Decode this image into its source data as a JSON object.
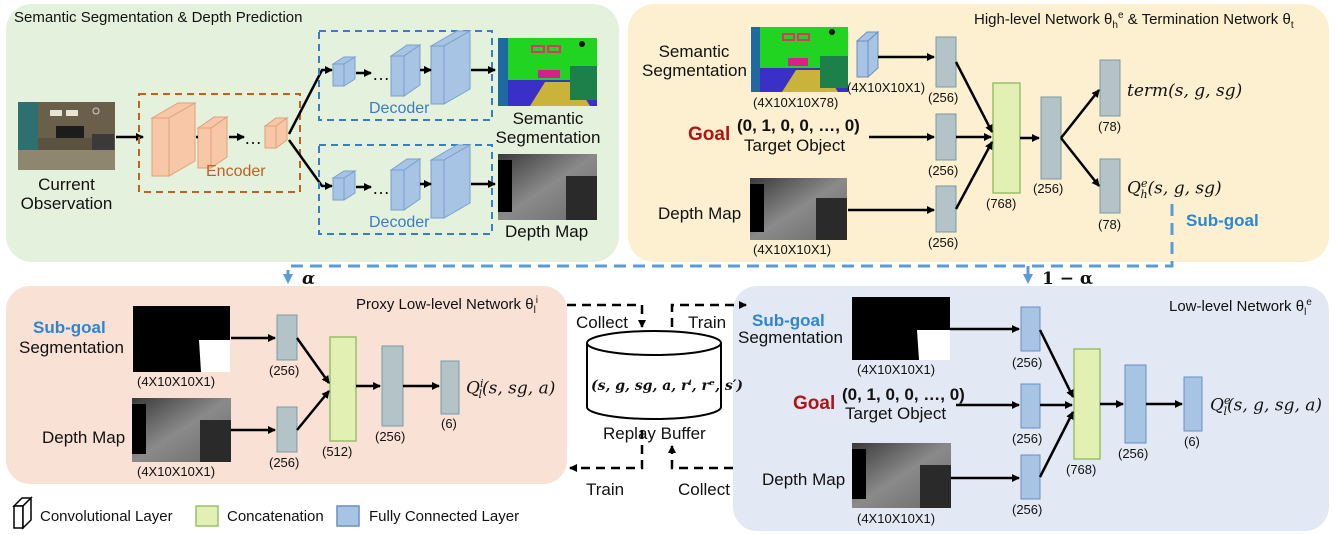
{
  "seg_depth": {
    "title": "Semantic Segmentation & Depth Prediction",
    "input_label_1": "Current",
    "input_label_2": "Observation",
    "encoder": "Encoder",
    "decoder_top": "Decoder",
    "decoder_bottom": "Decoder",
    "dots": "…",
    "seg_label_1": "Semantic",
    "seg_label_2": "Segmentation",
    "depth_label": "Depth Map"
  },
  "high_level": {
    "title": "High-level Network θ",
    "title_sup": "e",
    "title_sub": "h",
    "title_mid": " & Termination Network θ",
    "title_sub2": "t",
    "sem_label_1": "Semantic",
    "sem_label_2": "Segmentation",
    "sem_dim": "(4X10X10X78)",
    "conv_dim": "(4X10X10X1)",
    "goal": "Goal",
    "goal_vec": "(0, 1, 0, 0, …, 0)",
    "target": "Target Object",
    "depth_label": "Depth Map",
    "depth_dim": "(4X10X10X1)",
    "fc1": "(256)",
    "fc2": "(256)",
    "fc3": "(256)",
    "concat": "(768)",
    "fc4": "(256)",
    "term_out": "term(s, g, sg)",
    "term_dim": "(78)",
    "q_out": "Q",
    "q_sup": "e",
    "q_sub": "h",
    "q_args": "(s, g, sg)",
    "q_dim": "(78)",
    "subgoal": "Sub-goal"
  },
  "alpha": {
    "left": "α",
    "right": "1 − α"
  },
  "proxy": {
    "title": "Proxy Low-level Network θ",
    "title_sup": "i",
    "title_sub": "l",
    "subgoal": "Sub-goal",
    "seg": "Segmentation",
    "seg_dim": "(4X10X10X1)",
    "depth_label": "Depth Map",
    "depth_dim": "(4X10X10X1)",
    "fc1": "(256)",
    "fc2": "(256)",
    "concat": "(512)",
    "fc3": "(256)",
    "out_dim": "(6)",
    "q": "Q",
    "q_sup": "i",
    "q_sub": "l",
    "q_args": "(s, sg, a)"
  },
  "buffer": {
    "formula": "(s, g, sg, a, rⁱ, rᵉ, s′)",
    "label": "Replay Buffer",
    "collect_top": "Collect",
    "train_top": "Train",
    "train_bottom": "Train",
    "collect_bottom": "Collect"
  },
  "low_level": {
    "title": "Low-level Network θ",
    "title_sup": "e",
    "title_sub": "l",
    "subgoal": "Sub-goal",
    "seg": "Segmentation",
    "seg_dim": "(4X10X10X1)",
    "goal": "Goal",
    "goal_vec": "(0, 1, 0, 0, …, 0)",
    "target": "Target Object",
    "depth_label": "Depth Map",
    "depth_dim": "(4X10X10X1)",
    "fc1": "(256)",
    "fc2": "(256)",
    "fc3": "(256)",
    "concat": "(768)",
    "fc4": "(256)",
    "out_dim": "(6)",
    "q": "Q",
    "q_sup": "e",
    "q_sub": "l",
    "q_args": "(s, g, sg, a)"
  },
  "legend": {
    "conv": "Convolutional Layer",
    "concat": "Concatenation",
    "fc": "Fully Connected Layer"
  },
  "colors": {
    "panel_green": "#e4f1dc",
    "panel_yellow": "#fdf0d0",
    "panel_pink": "#f9e1d6",
    "panel_blue": "#e2e9f5",
    "fc_gray": "#b3c3c8",
    "fc_blue": "#a7c4e4",
    "concat": "#e3f0b4",
    "encoder": "#f7c7a7",
    "subgoal": "#2e86d0",
    "goal": "#b01515"
  }
}
